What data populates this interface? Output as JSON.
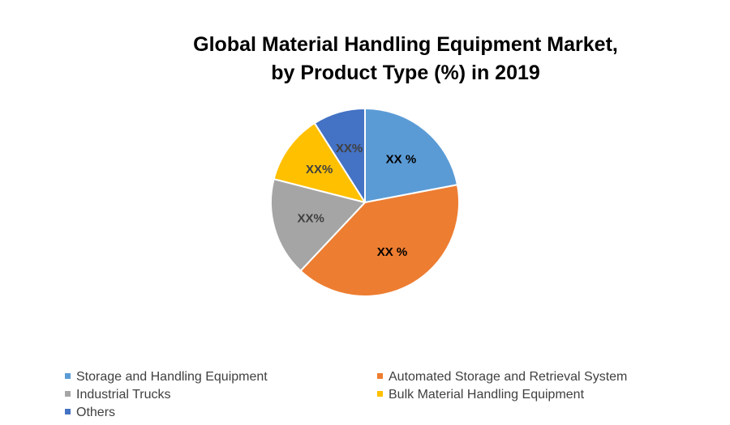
{
  "chart_data": {
    "type": "pie",
    "title_lines": [
      "Global Material Handling Equipment Market,",
      "by Product Type (%) in 2019"
    ],
    "categories": [
      "Storage and Handling Equipment",
      "Automated Storage and Retrieval System",
      "Industrial Trucks",
      "Bulk Material Handling Equipment",
      "Others"
    ],
    "values": [
      22,
      40,
      17,
      12,
      9
    ],
    "data_labels": [
      "XX %",
      "XX %",
      "XX%",
      "XX%",
      "XX%"
    ],
    "colors": [
      "#5B9BD5",
      "#ED7D31",
      "#A5A5A5",
      "#FFC000",
      "#4472C4"
    ],
    "label_colors": [
      "#000000",
      "#000000",
      "#404040",
      "#404040",
      "#404040"
    ],
    "start_angle_deg": 0,
    "direction": "clockwise",
    "legend_position": "bottom"
  }
}
